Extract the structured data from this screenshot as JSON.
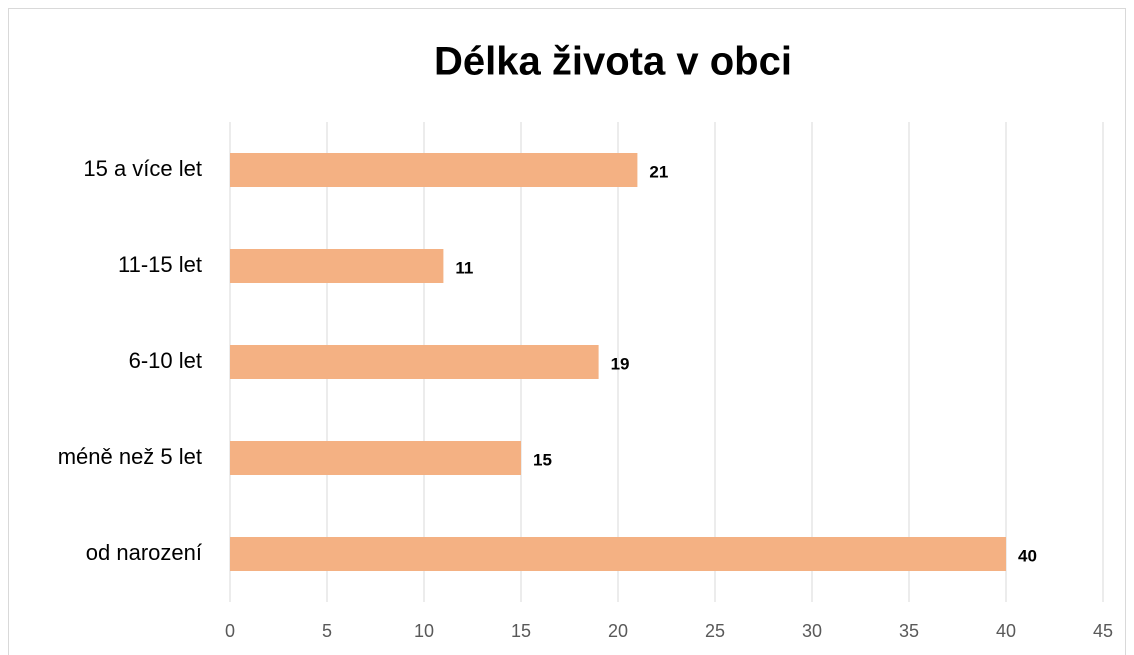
{
  "chart_data": {
    "type": "bar",
    "orientation": "horizontal",
    "title": "Délka života v obci",
    "categories": [
      "15 a více let",
      "11-15 let",
      "6-10 let",
      "méně než 5 let",
      "od narození"
    ],
    "values": [
      21,
      11,
      19,
      15,
      40
    ],
    "color": "#f4b183",
    "xlim": [
      0,
      45
    ],
    "xticks": [
      0,
      5,
      10,
      15,
      20,
      25,
      30,
      35,
      40,
      45
    ],
    "grid": true
  }
}
